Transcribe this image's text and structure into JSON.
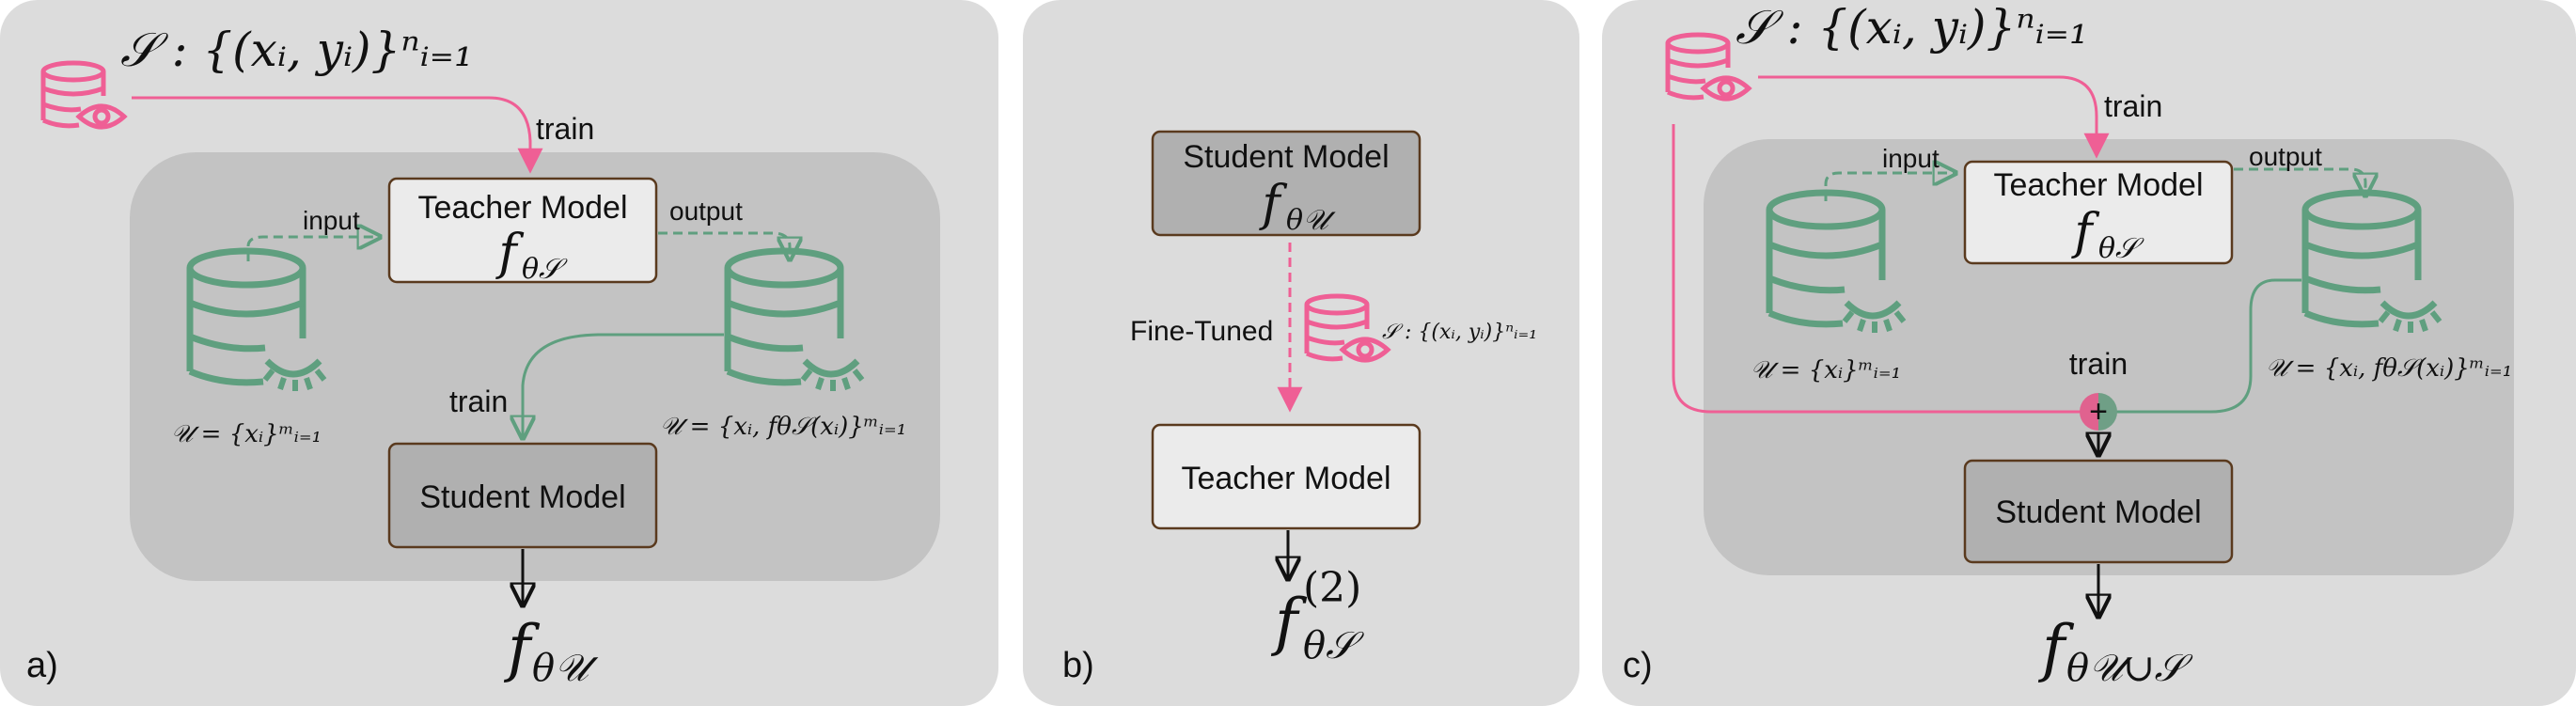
{
  "panels": {
    "a": {
      "letter": "a)",
      "dataset_s": "𝒮 : {(xᵢ, yᵢ)}ⁿᵢ₌₁",
      "train_top": "train",
      "input": "input",
      "output": "output",
      "teacher_title": "Teacher Model",
      "teacher_param": "f",
      "teacher_sub": "θ𝒮",
      "unlabeled": "𝒰 = {xᵢ}ᵐᵢ₌₁",
      "pseudo": "𝒰 = {xᵢ, fθ𝒮(xᵢ)}ᵐᵢ₌₁",
      "train_bottom": "train",
      "student_title": "Student Model",
      "result_f": "f",
      "result_sub": "θ𝒰"
    },
    "b": {
      "letter": "b)",
      "student_title": "Student Model",
      "student_f": "f",
      "student_sub": "θ𝒰",
      "fine_tuned": "Fine-Tuned",
      "dataset_s": "𝒮 : {(xᵢ, yᵢ)}ⁿᵢ₌₁",
      "teacher_title": "Teacher Model",
      "result_f": "f",
      "result_sup": "(2)",
      "result_sub": "θ𝒮"
    },
    "c": {
      "letter": "c)",
      "dataset_s": "𝒮 : {(xᵢ, yᵢ)}ⁿᵢ₌₁",
      "train_top": "train",
      "input": "input",
      "output": "output",
      "teacher_title": "Teacher Model",
      "teacher_param": "f",
      "teacher_sub": "θ𝒮",
      "unlabeled": "𝒰 = {xᵢ}ᵐᵢ₌₁",
      "pseudo": "𝒰 = {xᵢ, fθ𝒮(xᵢ)}ᵐᵢ₌₁",
      "train_mid": "train",
      "plus": "+",
      "student_title": "Student Model",
      "result_f": "f",
      "result_sub": "θ𝒰∪𝒮"
    }
  },
  "colors": {
    "pink": "#ef5f95",
    "green": "#5f9f7f",
    "panel_bg": "#dcdcdc",
    "inner_bg": "#c3c3c3",
    "box_light": "#ebebeb",
    "box_dark": "#b0b0b0",
    "box_border": "#5a3a1e"
  }
}
